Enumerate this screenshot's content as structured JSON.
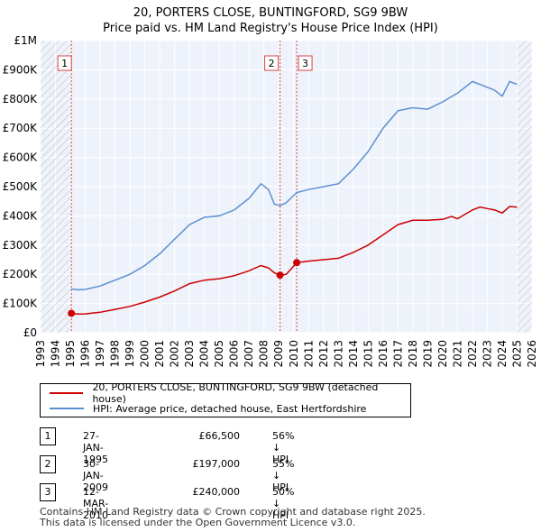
{
  "chart_data": {
    "type": "line",
    "title": "20, PORTERS CLOSE, BUNTINGFORD, SG9 9BW",
    "subtitle": "Price paid vs. HM Land Registry's House Price Index (HPI)",
    "xlim": [
      1993,
      2026
    ],
    "ylim": [
      0,
      1000000
    ],
    "x_ticks": [
      "1993",
      "1994",
      "1995",
      "1996",
      "1997",
      "1998",
      "1999",
      "2000",
      "2001",
      "2002",
      "2003",
      "2004",
      "2005",
      "2006",
      "2007",
      "2008",
      "2009",
      "2010",
      "2011",
      "2012",
      "2013",
      "2014",
      "2015",
      "2016",
      "2017",
      "2018",
      "2019",
      "2020",
      "2021",
      "2022",
      "2023",
      "2024",
      "2025",
      "2026"
    ],
    "y_ticks": [
      {
        "value": 0,
        "label": "£0"
      },
      {
        "value": 100000,
        "label": "£100K"
      },
      {
        "value": 200000,
        "label": "£200K"
      },
      {
        "value": 300000,
        "label": "£300K"
      },
      {
        "value": 400000,
        "label": "£400K"
      },
      {
        "value": 500000,
        "label": "£500K"
      },
      {
        "value": 600000,
        "label": "£600K"
      },
      {
        "value": 700000,
        "label": "£700K"
      },
      {
        "value": 800000,
        "label": "£800K"
      },
      {
        "value": 900000,
        "label": "£900K"
      },
      {
        "value": 1000000,
        "label": "£1M"
      }
    ],
    "hatch_before": 1995.07,
    "hatch_after": 2025.0,
    "series": [
      {
        "name": "20, PORTERS CLOSE, BUNTINGFORD, SG9 9BW (detached house)",
        "color": "#cc0000",
        "points": [
          [
            1995.07,
            66500
          ],
          [
            1995.5,
            64000
          ],
          [
            1996,
            64500
          ],
          [
            1997,
            70000
          ],
          [
            1998,
            80000
          ],
          [
            1999,
            90000
          ],
          [
            2000,
            105000
          ],
          [
            2001,
            122000
          ],
          [
            2002,
            143000
          ],
          [
            2003,
            168000
          ],
          [
            2004,
            180000
          ],
          [
            2005,
            185000
          ],
          [
            2006,
            195000
          ],
          [
            2007,
            212000
          ],
          [
            2007.8,
            230000
          ],
          [
            2008.3,
            222000
          ],
          [
            2008.7,
            205000
          ],
          [
            2009.08,
            197000
          ],
          [
            2009.5,
            200000
          ],
          [
            2010.2,
            240000
          ],
          [
            2011,
            245000
          ],
          [
            2012,
            250000
          ],
          [
            2013,
            255000
          ],
          [
            2014,
            275000
          ],
          [
            2015,
            300000
          ],
          [
            2016,
            335000
          ],
          [
            2017,
            370000
          ],
          [
            2018,
            385000
          ],
          [
            2019,
            385000
          ],
          [
            2020,
            388000
          ],
          [
            2020.6,
            398000
          ],
          [
            2021,
            390000
          ],
          [
            2022,
            420000
          ],
          [
            2022.5,
            430000
          ],
          [
            2023,
            425000
          ],
          [
            2023.5,
            420000
          ],
          [
            2024,
            410000
          ],
          [
            2024.5,
            432000
          ],
          [
            2025,
            430000
          ]
        ]
      },
      {
        "name": "HPI: Average price, detached house, East Hertfordshire",
        "color": "#5b8fd4",
        "points": [
          [
            1995.07,
            150000
          ],
          [
            1995.5,
            147000
          ],
          [
            1996,
            148000
          ],
          [
            1997,
            160000
          ],
          [
            1998,
            180000
          ],
          [
            1999,
            200000
          ],
          [
            2000,
            230000
          ],
          [
            2001,
            270000
          ],
          [
            2002,
            320000
          ],
          [
            2003,
            370000
          ],
          [
            2004,
            395000
          ],
          [
            2005,
            400000
          ],
          [
            2006,
            420000
          ],
          [
            2007,
            460000
          ],
          [
            2007.8,
            510000
          ],
          [
            2008.3,
            490000
          ],
          [
            2008.7,
            440000
          ],
          [
            2009.08,
            435000
          ],
          [
            2009.5,
            445000
          ],
          [
            2010.2,
            480000
          ],
          [
            2011,
            490000
          ],
          [
            2012,
            500000
          ],
          [
            2013,
            510000
          ],
          [
            2014,
            560000
          ],
          [
            2015,
            620000
          ],
          [
            2016,
            700000
          ],
          [
            2017,
            760000
          ],
          [
            2018,
            770000
          ],
          [
            2019,
            765000
          ],
          [
            2020,
            790000
          ],
          [
            2021,
            820000
          ],
          [
            2022,
            860000
          ],
          [
            2022.5,
            850000
          ],
          [
            2023,
            840000
          ],
          [
            2023.5,
            830000
          ],
          [
            2024,
            810000
          ],
          [
            2024.5,
            860000
          ],
          [
            2025,
            850000
          ]
        ]
      }
    ],
    "markers": [
      {
        "label": "1",
        "x": 1995.07,
        "y": 66500
      },
      {
        "label": "2",
        "x": 2009.08,
        "y": 197000
      },
      {
        "label": "3",
        "x": 2010.2,
        "y": 240000
      }
    ]
  },
  "legend": [
    {
      "label": "20, PORTERS CLOSE, BUNTINGFORD, SG9 9BW (detached house)",
      "color": "#cc0000"
    },
    {
      "label": "HPI: Average price, detached house, East Hertfordshire",
      "color": "#5b8fd4"
    }
  ],
  "transactions": [
    {
      "num": "1",
      "date": "27-JAN-1995",
      "price": "£66,500",
      "hpi": "56% ↓ HPI"
    },
    {
      "num": "2",
      "date": "30-JAN-2009",
      "price": "£197,000",
      "hpi": "55% ↓ HPI"
    },
    {
      "num": "3",
      "date": "12-MAR-2010",
      "price": "£240,000",
      "hpi": "50% ↓ HPI"
    }
  ],
  "footer": {
    "line1": "Contains HM Land Registry data © Crown copyright and database right 2025.",
    "line2": "This data is licensed under the Open Government Licence v3.0."
  }
}
